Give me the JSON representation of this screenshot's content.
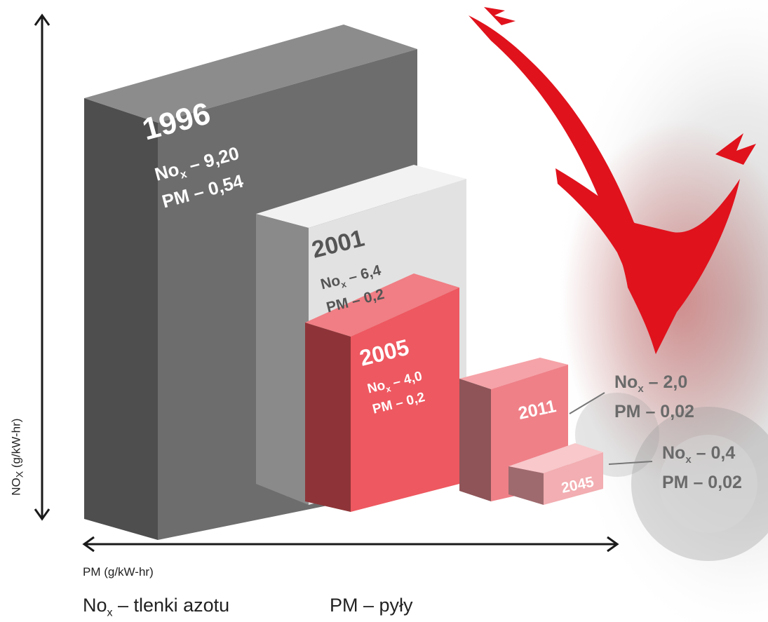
{
  "axes": {
    "y_label": "NO",
    "y_label_sub": "X",
    "y_label_unit": " (g/kW-hr)",
    "x_label": "PM (g/kW-hr)"
  },
  "steps": [
    {
      "year": "1996",
      "nox_prefix": "No",
      "nox_sub": "x",
      "nox_value": " – 9,20",
      "pm": "PM – 0,54"
    },
    {
      "year": "2001",
      "nox_prefix": "No",
      "nox_sub": "x",
      "nox_value": " – 6,4",
      "pm": "PM – 0,2"
    },
    {
      "year": "2005",
      "nox_prefix": "No",
      "nox_sub": "x",
      "nox_value": " – 4,0",
      "pm": "PM – 0,2"
    },
    {
      "year": "2011",
      "nox_prefix": "No",
      "nox_sub": "x",
      "nox_value": " – 2,0",
      "pm": "PM – 0,02"
    },
    {
      "year": "2045",
      "nox_prefix": "No",
      "nox_sub": "x",
      "nox_value": " – 0,4",
      "pm": "PM – 0,02"
    }
  ],
  "legend": {
    "nox_prefix": "No",
    "nox_sub": "x",
    "nox_text": " – tlenki azotu",
    "pm_text": "PM – pyły"
  },
  "colors": {
    "block_1996": "#6d6d6d",
    "block_2001": "#e2e2e2",
    "block_2005": "#ee5860",
    "block_2011": "#ef8088",
    "block_2045": "#f2aeb2",
    "arrow": "#e0121c"
  }
}
